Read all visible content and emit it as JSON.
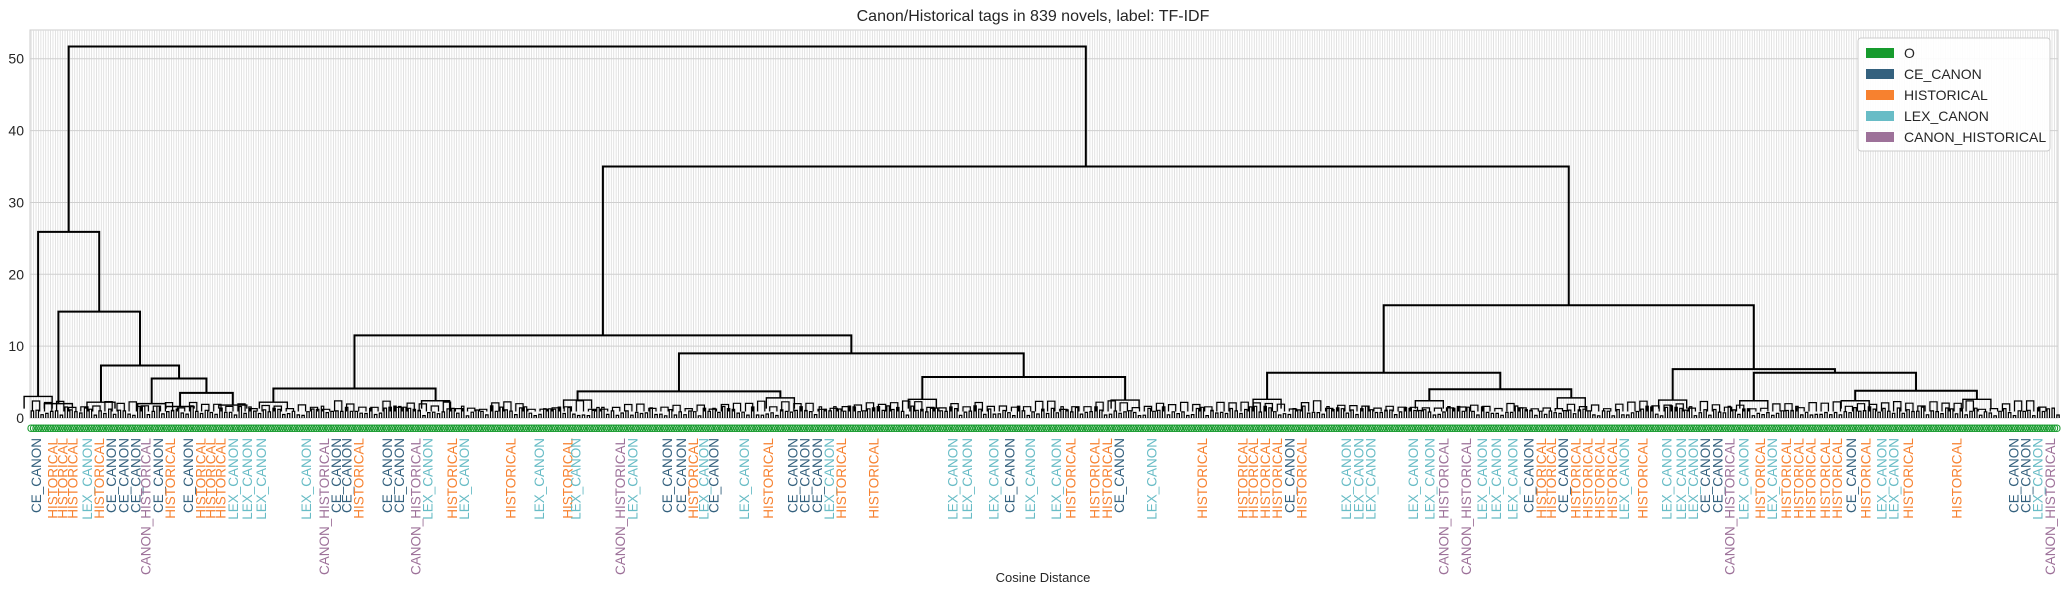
{
  "chart_data": {
    "type": "dendrogram",
    "title": "Canon/Historical tags in 839 novels, label: TF-IDF",
    "xlabel": "Cosine Distance",
    "ylabel": "",
    "ylim": [
      0,
      54
    ],
    "yticks": [
      0,
      10,
      20,
      30,
      40,
      50
    ],
    "grid": true,
    "leaf_count": 839,
    "leaf_marker": "O",
    "legend_position": "top-right",
    "legend": [
      {
        "label": "O",
        "color": "#169b2d"
      },
      {
        "label": "CE_CANON",
        "color": "#34617e"
      },
      {
        "label": "HISTORICAL",
        "color": "#f7812f"
      },
      {
        "label": "LEX_CANON",
        "color": "#68bcc6"
      },
      {
        "label": "CANON_HISTORICAL",
        "color": "#9d7199"
      }
    ],
    "merges": [
      {
        "name": "root",
        "height": 51.7,
        "children": [
          "left-cluster",
          "right-cluster"
        ]
      },
      {
        "name": "left-cluster",
        "height": 25.9,
        "children": [
          "l-a",
          "l-b"
        ]
      },
      {
        "name": "l-b",
        "height": 14.8,
        "children": [
          "l-b1",
          "l-b2"
        ]
      },
      {
        "name": "l-b2",
        "height": 7.3,
        "children": [
          "l-b2a",
          "l-b2b"
        ]
      },
      {
        "name": "l-b2b",
        "height": 5.5,
        "children": [
          "l-b2b1",
          "l-b2b2"
        ]
      },
      {
        "name": "l-b2b2",
        "height": 3.5,
        "children": [
          "l-b2b2a",
          "l-b2b2b"
        ]
      },
      {
        "name": "right-cluster",
        "height": 35.0,
        "children": [
          "m-cluster",
          "r-cluster"
        ]
      },
      {
        "name": "m-cluster",
        "height": 11.5,
        "children": [
          "m-a",
          "m-b"
        ]
      },
      {
        "name": "m-a",
        "height": 4.1,
        "children": [
          "m-a1",
          "m-a2"
        ]
      },
      {
        "name": "m-b",
        "height": 9.0,
        "children": [
          "m-b1",
          "m-b2"
        ]
      },
      {
        "name": "m-b2",
        "height": 5.7,
        "children": [
          "m-b2a",
          "m-b2b"
        ]
      },
      {
        "name": "m-b1",
        "height": 3.7,
        "children": [
          "m-b1a",
          "m-b1b"
        ]
      },
      {
        "name": "r-cluster",
        "height": 15.7,
        "children": [
          "r-a",
          "r-b"
        ]
      },
      {
        "name": "r-a",
        "height": 6.3,
        "children": [
          "r-a1",
          "r-a2"
        ]
      },
      {
        "name": "r-a2",
        "height": 4.0,
        "children": [
          "r-a2a",
          "r-a2b"
        ]
      },
      {
        "name": "r-b",
        "height": 6.8,
        "children": [
          "r-b1",
          "r-b2"
        ]
      },
      {
        "name": "r-b2",
        "height": 6.3,
        "children": [
          "r-b2a",
          "r-b2b"
        ]
      },
      {
        "name": "r-b2b",
        "height": 3.8,
        "children": [
          "r-b2b1",
          "r-b2b2"
        ]
      }
    ],
    "leaf_labels": [
      {
        "text": "CE_CANON",
        "tag": "CE_CANON",
        "pos": 0.003
      },
      {
        "text": "HISTORICAL",
        "tag": "HISTORICAL",
        "pos": 0.011
      },
      {
        "text": "HISTORICAL",
        "tag": "HISTORICAL",
        "pos": 0.016
      },
      {
        "text": "HISTORICAL",
        "tag": "HISTORICAL",
        "pos": 0.021
      },
      {
        "text": "LEX_CANON",
        "tag": "LEX_CANON",
        "pos": 0.028
      },
      {
        "text": "HISTORICAL",
        "tag": "HISTORICAL",
        "pos": 0.034
      },
      {
        "text": "CE_CANON",
        "tag": "CE_CANON",
        "pos": 0.04
      },
      {
        "text": "CE_CANON",
        "tag": "CE_CANON",
        "pos": 0.046
      },
      {
        "text": "CE_CANON",
        "tag": "CE_CANON",
        "pos": 0.052
      },
      {
        "text": "CANON_HISTORICAL",
        "tag": "CANON_HISTORICAL",
        "pos": 0.057
      },
      {
        "text": "CE_CANON",
        "tag": "CE_CANON",
        "pos": 0.063
      },
      {
        "text": "HISTORICAL",
        "tag": "HISTORICAL",
        "pos": 0.069
      },
      {
        "text": "CE_CANON",
        "tag": "CE_CANON",
        "pos": 0.078
      },
      {
        "text": "HISTORICAL",
        "tag": "HISTORICAL",
        "pos": 0.084
      },
      {
        "text": "HISTORICAL",
        "tag": "HISTORICAL",
        "pos": 0.089
      },
      {
        "text": "HISTORICAL",
        "tag": "HISTORICAL",
        "pos": 0.094
      },
      {
        "text": "LEX_CANON",
        "tag": "LEX_CANON",
        "pos": 0.1
      },
      {
        "text": "LEX_CANON",
        "tag": "LEX_CANON",
        "pos": 0.107
      },
      {
        "text": "LEX_CANON",
        "tag": "LEX_CANON",
        "pos": 0.114
      },
      {
        "text": "LEX_CANON",
        "tag": "LEX_CANON",
        "pos": 0.136
      },
      {
        "text": "CANON_HISTORICAL",
        "tag": "CANON_HISTORICAL",
        "pos": 0.145
      },
      {
        "text": "CE_CANON",
        "tag": "CE_CANON",
        "pos": 0.151
      },
      {
        "text": "CE_CANON",
        "tag": "CE_CANON",
        "pos": 0.156
      },
      {
        "text": "HISTORICAL",
        "tag": "HISTORICAL",
        "pos": 0.162
      },
      {
        "text": "CE_CANON",
        "tag": "CE_CANON",
        "pos": 0.176
      },
      {
        "text": "CE_CANON",
        "tag": "CE_CANON",
        "pos": 0.182
      },
      {
        "text": "CANON_HISTORICAL",
        "tag": "CANON_HISTORICAL",
        "pos": 0.19
      },
      {
        "text": "LEX_CANON",
        "tag": "LEX_CANON",
        "pos": 0.196
      },
      {
        "text": "HISTORICAL",
        "tag": "HISTORICAL",
        "pos": 0.208
      },
      {
        "text": "LEX_CANON",
        "tag": "LEX_CANON",
        "pos": 0.214
      },
      {
        "text": "HISTORICAL",
        "tag": "HISTORICAL",
        "pos": 0.237
      },
      {
        "text": "LEX_CANON",
        "tag": "LEX_CANON",
        "pos": 0.251
      },
      {
        "text": "HISTORICAL",
        "tag": "HISTORICAL",
        "pos": 0.265
      },
      {
        "text": "LEX_CANON",
        "tag": "LEX_CANON",
        "pos": 0.269
      },
      {
        "text": "CANON_HISTORICAL",
        "tag": "CANON_HISTORICAL",
        "pos": 0.291
      },
      {
        "text": "LEX_CANON",
        "tag": "LEX_CANON",
        "pos": 0.297
      },
      {
        "text": "CE_CANON",
        "tag": "CE_CANON",
        "pos": 0.314
      },
      {
        "text": "CE_CANON",
        "tag": "CE_CANON",
        "pos": 0.321
      },
      {
        "text": "HISTORICAL",
        "tag": "HISTORICAL",
        "pos": 0.327
      },
      {
        "text": "LEX_CANON",
        "tag": "LEX_CANON",
        "pos": 0.332
      },
      {
        "text": "CE_CANON",
        "tag": "CE_CANON",
        "pos": 0.337
      },
      {
        "text": "LEX_CANON",
        "tag": "LEX_CANON",
        "pos": 0.352
      },
      {
        "text": "HISTORICAL",
        "tag": "HISTORICAL",
        "pos": 0.364
      },
      {
        "text": "CE_CANON",
        "tag": "CE_CANON",
        "pos": 0.376
      },
      {
        "text": "CE_CANON",
        "tag": "CE_CANON",
        "pos": 0.382
      },
      {
        "text": "CE_CANON",
        "tag": "CE_CANON",
        "pos": 0.388
      },
      {
        "text": "LEX_CANON",
        "tag": "LEX_CANON",
        "pos": 0.394
      },
      {
        "text": "HISTORICAL",
        "tag": "HISTORICAL",
        "pos": 0.4
      },
      {
        "text": "HISTORICAL",
        "tag": "HISTORICAL",
        "pos": 0.416
      },
      {
        "text": "LEX_CANON",
        "tag": "LEX_CANON",
        "pos": 0.455
      },
      {
        "text": "LEX_CANON",
        "tag": "LEX_CANON",
        "pos": 0.462
      },
      {
        "text": "LEX_CANON",
        "tag": "LEX_CANON",
        "pos": 0.475
      },
      {
        "text": "CE_CANON",
        "tag": "CE_CANON",
        "pos": 0.483
      },
      {
        "text": "LEX_CANON",
        "tag": "LEX_CANON",
        "pos": 0.493
      },
      {
        "text": "LEX_CANON",
        "tag": "LEX_CANON",
        "pos": 0.506
      },
      {
        "text": "HISTORICAL",
        "tag": "HISTORICAL",
        "pos": 0.513
      },
      {
        "text": "HISTORICAL",
        "tag": "HISTORICAL",
        "pos": 0.525
      },
      {
        "text": "HISTORICAL",
        "tag": "HISTORICAL",
        "pos": 0.531
      },
      {
        "text": "CE_CANON",
        "tag": "CE_CANON",
        "pos": 0.537
      },
      {
        "text": "LEX_CANON",
        "tag": "LEX_CANON",
        "pos": 0.553
      },
      {
        "text": "HISTORICAL",
        "tag": "HISTORICAL",
        "pos": 0.578
      },
      {
        "text": "HISTORICAL",
        "tag": "HISTORICAL",
        "pos": 0.598
      },
      {
        "text": "HISTORICAL",
        "tag": "HISTORICAL",
        "pos": 0.603
      },
      {
        "text": "HISTORICAL",
        "tag": "HISTORICAL",
        "pos": 0.609
      },
      {
        "text": "HISTORICAL",
        "tag": "HISTORICAL",
        "pos": 0.615
      },
      {
        "text": "CE_CANON",
        "tag": "CE_CANON",
        "pos": 0.621
      },
      {
        "text": "HISTORICAL",
        "tag": "HISTORICAL",
        "pos": 0.627
      },
      {
        "text": "LEX_CANON",
        "tag": "LEX_CANON",
        "pos": 0.649
      },
      {
        "text": "LEX_CANON",
        "tag": "LEX_CANON",
        "pos": 0.655
      },
      {
        "text": "LEX_CANON",
        "tag": "LEX_CANON",
        "pos": 0.661
      },
      {
        "text": "LEX_CANON",
        "tag": "LEX_CANON",
        "pos": 0.682
      },
      {
        "text": "LEX_CANON",
        "tag": "LEX_CANON",
        "pos": 0.69
      },
      {
        "text": "CANON_HISTORICAL",
        "tag": "CANON_HISTORICAL",
        "pos": 0.697
      },
      {
        "text": "CANON_HISTORICAL",
        "tag": "CANON_HISTORICAL",
        "pos": 0.708
      },
      {
        "text": "LEX_CANON",
        "tag": "LEX_CANON",
        "pos": 0.716
      },
      {
        "text": "LEX_CANON",
        "tag": "LEX_CANON",
        "pos": 0.723
      },
      {
        "text": "LEX_CANON",
        "tag": "LEX_CANON",
        "pos": 0.731
      },
      {
        "text": "CE_CANON",
        "tag": "CE_CANON",
        "pos": 0.739
      },
      {
        "text": "HISTORICAL",
        "tag": "HISTORICAL",
        "pos": 0.745
      },
      {
        "text": "HISTORICAL",
        "tag": "HISTORICAL",
        "pos": 0.75
      },
      {
        "text": "CE_CANON",
        "tag": "CE_CANON",
        "pos": 0.756
      },
      {
        "text": "HISTORICAL",
        "tag": "HISTORICAL",
        "pos": 0.762
      },
      {
        "text": "HISTORICAL",
        "tag": "HISTORICAL",
        "pos": 0.768
      },
      {
        "text": "HISTORICAL",
        "tag": "HISTORICAL",
        "pos": 0.774
      },
      {
        "text": "HISTORICAL",
        "tag": "HISTORICAL",
        "pos": 0.78
      },
      {
        "text": "LEX_CANON",
        "tag": "LEX_CANON",
        "pos": 0.786
      },
      {
        "text": "HISTORICAL",
        "tag": "HISTORICAL",
        "pos": 0.795
      },
      {
        "text": "LEX_CANON",
        "tag": "LEX_CANON",
        "pos": 0.807
      },
      {
        "text": "LEX_CANON",
        "tag": "LEX_CANON",
        "pos": 0.814
      },
      {
        "text": "LEX_CANON",
        "tag": "LEX_CANON",
        "pos": 0.82
      },
      {
        "text": "CE_CANON",
        "tag": "CE_CANON",
        "pos": 0.826
      },
      {
        "text": "CE_CANON",
        "tag": "CE_CANON",
        "pos": 0.832
      },
      {
        "text": "CANON_HISTORICAL",
        "tag": "CANON_HISTORICAL",
        "pos": 0.838
      },
      {
        "text": "LEX_CANON",
        "tag": "LEX_CANON",
        "pos": 0.845
      },
      {
        "text": "HISTORICAL",
        "tag": "HISTORICAL",
        "pos": 0.853
      },
      {
        "text": "LEX_CANON",
        "tag": "LEX_CANON",
        "pos": 0.859
      },
      {
        "text": "HISTORICAL",
        "tag": "HISTORICAL",
        "pos": 0.866
      },
      {
        "text": "HISTORICAL",
        "tag": "HISTORICAL",
        "pos": 0.872
      },
      {
        "text": "HISTORICAL",
        "tag": "HISTORICAL",
        "pos": 0.878
      },
      {
        "text": "HISTORICAL",
        "tag": "HISTORICAL",
        "pos": 0.885
      },
      {
        "text": "HISTORICAL",
        "tag": "HISTORICAL",
        "pos": 0.891
      },
      {
        "text": "CE_CANON",
        "tag": "CE_CANON",
        "pos": 0.898
      },
      {
        "text": "HISTORICAL",
        "tag": "HISTORICAL",
        "pos": 0.905
      },
      {
        "text": "LEX_CANON",
        "tag": "LEX_CANON",
        "pos": 0.913
      },
      {
        "text": "LEX_CANON",
        "tag": "LEX_CANON",
        "pos": 0.919
      },
      {
        "text": "HISTORICAL",
        "tag": "HISTORICAL",
        "pos": 0.926
      },
      {
        "text": "HISTORICAL",
        "tag": "HISTORICAL",
        "pos": 0.95
      },
      {
        "text": "CE_CANON",
        "tag": "CE_CANON",
        "pos": 0.978
      },
      {
        "text": "CE_CANON",
        "tag": "CE_CANON",
        "pos": 0.984
      },
      {
        "text": "LEX_CANON",
        "tag": "LEX_CANON",
        "pos": 0.99
      },
      {
        "text": "CANON_HISTORICAL",
        "tag": "CANON_HISTORICAL",
        "pos": 0.996
      }
    ]
  }
}
